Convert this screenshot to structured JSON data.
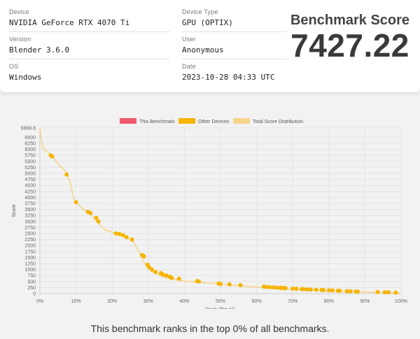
{
  "info": {
    "device_label": "Device",
    "device_value": "NVIDIA GeForce RTX 4070 Ti",
    "device_type_label": "Device Type",
    "device_type_value": "GPU (OPTIX)",
    "version_label": "Version",
    "version_value": "Blender 3.6.0",
    "user_label": "User",
    "user_value": "Anonymous",
    "os_label": "OS",
    "os_value": "Windows",
    "date_label": "Date",
    "date_value": "2023-10-28 04:33 UTC"
  },
  "score": {
    "title": "Benchmark Score",
    "value": "7427.22"
  },
  "footer_text": "This benchmark ranks in the top 0% of all benchmarks.",
  "colors": {
    "this_benchmark": "#f05a6a",
    "other_devices": "#f5b400",
    "distribution": "#f5d48a"
  },
  "chart_data": {
    "type": "line",
    "xlabel": "Rank (Top %)",
    "ylabel": "Score",
    "xlim": [
      0,
      100
    ],
    "ylim": [
      0,
      6889.8
    ],
    "x_ticks": [
      "0%",
      "10%",
      "20%",
      "30%",
      "40%",
      "50%",
      "60%",
      "70%",
      "80%",
      "90%",
      "100%"
    ],
    "y_ticks": [
      "0",
      "250",
      "500",
      "750",
      "1000",
      "1250",
      "1500",
      "1750",
      "2000",
      "2250",
      "2500",
      "2750",
      "3000",
      "3250",
      "3500",
      "3750",
      "4000",
      "4250",
      "4500",
      "4750",
      "5000",
      "5250",
      "5500",
      "5750",
      "6000",
      "6250",
      "6500",
      "6889.8"
    ],
    "legend": [
      "This Benchmark",
      "Other Devices",
      "Total Score Distribution"
    ],
    "legend_position": "top",
    "grid": true,
    "distribution": {
      "name": "Total Score Distribution",
      "x": [
        0,
        0.3,
        0.7,
        1.5,
        3,
        4,
        5,
        6,
        7,
        7.6,
        8.2,
        8.7,
        9.3,
        10,
        11,
        12,
        13,
        14,
        15,
        16,
        17,
        18,
        20,
        21,
        22,
        23.5,
        25,
        26,
        27,
        28,
        28.5,
        29.2,
        30,
        30.5,
        31,
        32,
        33,
        34,
        36,
        38,
        40,
        45,
        50,
        55,
        60,
        65,
        70,
        75,
        80,
        85,
        90,
        95,
        100
      ],
      "y": [
        6889.8,
        6500,
        6150,
        5950,
        5800,
        5600,
        5400,
        5250,
        5100,
        4950,
        4700,
        4400,
        4000,
        3800,
        3650,
        3500,
        3400,
        3320,
        3150,
        2950,
        2800,
        2650,
        2550,
        2480,
        2420,
        2340,
        2250,
        2100,
        1850,
        1600,
        1400,
        1200,
        1100,
        1000,
        920,
        840,
        780,
        700,
        620,
        560,
        520,
        460,
        400,
        330,
        270,
        210,
        175,
        145,
        120,
        90,
        65,
        40,
        20
      ]
    },
    "other_devices": {
      "name": "Other Devices",
      "x": [
        3,
        3.4,
        7.4,
        10,
        13.3,
        14,
        15.6,
        16.2,
        21,
        22,
        23,
        24,
        25.5,
        28.3,
        28.8,
        29.8,
        30.2,
        31,
        32,
        33.5,
        34,
        35,
        36,
        36.5,
        38.5,
        43.5,
        44,
        49.5,
        50,
        52.5,
        55.5,
        62,
        62.5,
        63.5,
        64.5,
        65.5,
        66.5,
        67,
        67.5,
        68,
        70,
        71,
        72.5,
        73,
        74,
        75,
        76.5,
        78,
        78.5,
        80,
        81,
        82.5,
        83,
        85,
        86,
        87.5,
        88,
        93.5,
        95.5,
        96.5,
        98.5
      ],
      "y": [
        5750,
        5700,
        4950,
        3800,
        3400,
        3350,
        3150,
        3000,
        2500,
        2480,
        2430,
        2350,
        2250,
        1600,
        1550,
        1200,
        1100,
        1000,
        900,
        850,
        800,
        750,
        700,
        650,
        620,
        520,
        500,
        420,
        400,
        380,
        350,
        290,
        280,
        270,
        260,
        250,
        240,
        235,
        230,
        225,
        205,
        200,
        190,
        185,
        175,
        170,
        160,
        150,
        145,
        135,
        130,
        120,
        115,
        100,
        95,
        85,
        80,
        65,
        55,
        50,
        40
      ]
    }
  }
}
